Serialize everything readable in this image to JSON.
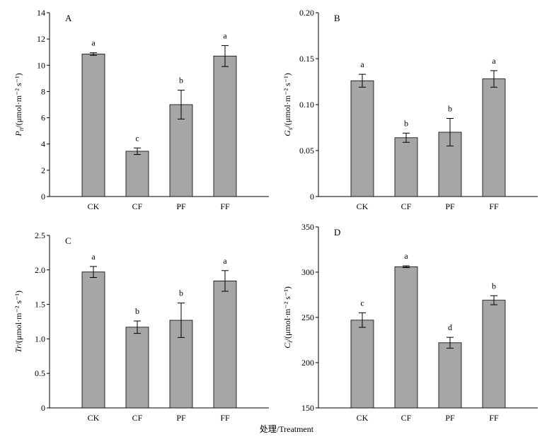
{
  "chart_data": [
    {
      "type": "bar",
      "panel_label": "A",
      "ylabel": "Pn/(μmol·m⁻² s⁻¹)",
      "ylabel_symbol": "P",
      "ylabel_sub": "n",
      "ylabel_unit": "/(μmol·m⁻² s⁻¹)",
      "categories": [
        "CK",
        "CF",
        "PF",
        "FF"
      ],
      "values": [
        10.85,
        3.45,
        7.0,
        10.7
      ],
      "errors": [
        0.1,
        0.25,
        1.1,
        0.8
      ],
      "significance": [
        "a",
        "c",
        "b",
        "a"
      ],
      "ylim": [
        0,
        14
      ],
      "yticks": [
        "0",
        "2",
        "4",
        "6",
        "8",
        "10",
        "12",
        "14"
      ]
    },
    {
      "type": "bar",
      "panel_label": "B",
      "ylabel": "Gs/(μmol·m⁻² s⁻¹)",
      "ylabel_symbol": "G",
      "ylabel_sub": "s",
      "ylabel_unit": "/(μmol·m⁻² s⁻¹)",
      "categories": [
        "CK",
        "CF",
        "PF",
        "FF"
      ],
      "values": [
        0.126,
        0.064,
        0.07,
        0.128
      ],
      "errors": [
        0.007,
        0.005,
        0.015,
        0.009
      ],
      "significance": [
        "a",
        "b",
        "b",
        "a"
      ],
      "ylim": [
        0,
        0.2
      ],
      "yticks": [
        "0",
        "0.05",
        "0.10",
        "0.15",
        "0.20"
      ]
    },
    {
      "type": "bar",
      "panel_label": "C",
      "ylabel": "Tr/(μmol·m⁻² s⁻¹)",
      "ylabel_symbol": "Tr",
      "ylabel_sub": "",
      "ylabel_unit": "/(μmol·m⁻² s⁻¹)",
      "categories": [
        "CK",
        "CF",
        "PF",
        "FF"
      ],
      "values": [
        1.97,
        1.17,
        1.27,
        1.84
      ],
      "errors": [
        0.08,
        0.09,
        0.25,
        0.15
      ],
      "significance": [
        "a",
        "b",
        "b",
        "a"
      ],
      "ylim": [
        0,
        2.5
      ],
      "yticks": [
        "0",
        "0.5",
        "1.0",
        "1.5",
        "2.0",
        "2.5"
      ]
    },
    {
      "type": "bar",
      "panel_label": "D",
      "ylabel": "Ci/(μmol·m⁻² s⁻¹)",
      "ylabel_symbol": "C",
      "ylabel_sub": "i",
      "ylabel_unit": "/(μmol·m⁻² s⁻¹)",
      "categories": [
        "CK",
        "CF",
        "PF",
        "FF"
      ],
      "values": [
        247,
        306,
        222,
        269
      ],
      "errors": [
        8,
        1,
        6,
        5
      ],
      "significance": [
        "c",
        "a",
        "d",
        "b"
      ],
      "ylim": [
        150,
        350
      ],
      "yticks": [
        "150",
        "200",
        "250",
        "300",
        "350"
      ]
    }
  ],
  "xlabel": "处理/Treatment"
}
